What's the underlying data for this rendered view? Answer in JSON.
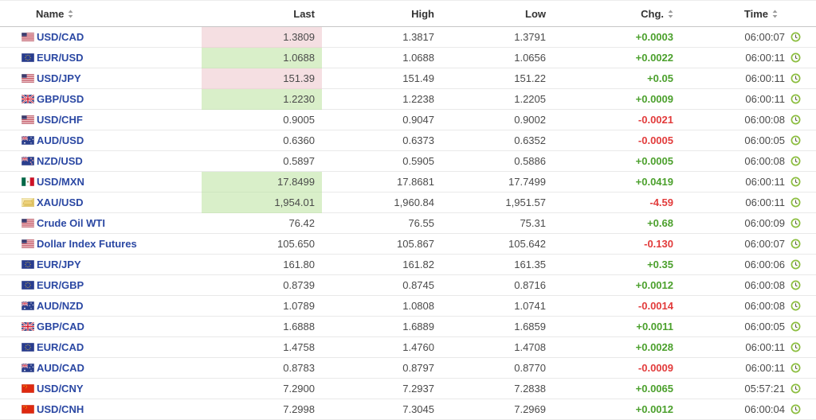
{
  "table": {
    "columns": [
      {
        "key": "name",
        "label": "Name",
        "sortable": true,
        "align": "left"
      },
      {
        "key": "last",
        "label": "Last",
        "sortable": false,
        "align": "right"
      },
      {
        "key": "high",
        "label": "High",
        "sortable": false,
        "align": "right"
      },
      {
        "key": "low",
        "label": "Low",
        "sortable": false,
        "align": "right"
      },
      {
        "key": "chg",
        "label": "Chg.",
        "sortable": true,
        "align": "right"
      },
      {
        "key": "time",
        "label": "Time",
        "sortable": true,
        "align": "right"
      }
    ],
    "rows": [
      {
        "flag": "us-flag-icon",
        "name": "USD/CAD",
        "last": "1.3809",
        "last_highlight": "down",
        "high": "1.3817",
        "low": "1.3791",
        "chg": "+0.0003",
        "chg_dir": "up",
        "time": "06:00:07"
      },
      {
        "flag": "eu-flag-icon",
        "name": "EUR/USD",
        "last": "1.0688",
        "last_highlight": "up",
        "high": "1.0688",
        "low": "1.0656",
        "chg": "+0.0022",
        "chg_dir": "up",
        "time": "06:00:11"
      },
      {
        "flag": "us-flag-icon",
        "name": "USD/JPY",
        "last": "151.39",
        "last_highlight": "down",
        "high": "151.49",
        "low": "151.22",
        "chg": "+0.05",
        "chg_dir": "up",
        "time": "06:00:11"
      },
      {
        "flag": "gb-flag-icon",
        "name": "GBP/USD",
        "last": "1.2230",
        "last_highlight": "up",
        "high": "1.2238",
        "low": "1.2205",
        "chg": "+0.0009",
        "chg_dir": "up",
        "time": "06:00:11"
      },
      {
        "flag": "us-flag-icon",
        "name": "USD/CHF",
        "last": "0.9005",
        "last_highlight": "none",
        "high": "0.9047",
        "low": "0.9002",
        "chg": "-0.0021",
        "chg_dir": "down",
        "time": "06:00:08"
      },
      {
        "flag": "au-flag-icon",
        "name": "AUD/USD",
        "last": "0.6360",
        "last_highlight": "none",
        "high": "0.6373",
        "low": "0.6352",
        "chg": "-0.0005",
        "chg_dir": "down",
        "time": "06:00:05"
      },
      {
        "flag": "nz-flag-icon",
        "name": "NZD/USD",
        "last": "0.5897",
        "last_highlight": "none",
        "high": "0.5905",
        "low": "0.5886",
        "chg": "+0.0005",
        "chg_dir": "up",
        "time": "06:00:08"
      },
      {
        "flag": "mx-flag-icon",
        "name": "USD/MXN",
        "last": "17.8499",
        "last_highlight": "up",
        "high": "17.8681",
        "low": "17.7499",
        "chg": "+0.0419",
        "chg_dir": "up",
        "time": "06:00:11"
      },
      {
        "flag": "gold-icon",
        "name": "XAU/USD",
        "last": "1,954.01",
        "last_highlight": "up",
        "high": "1,960.84",
        "low": "1,951.57",
        "chg": "-4.59",
        "chg_dir": "down",
        "time": "06:00:11"
      },
      {
        "flag": "us-flag-icon",
        "name": "Crude Oil WTI",
        "last": "76.42",
        "last_highlight": "none",
        "high": "76.55",
        "low": "75.31",
        "chg": "+0.68",
        "chg_dir": "up",
        "time": "06:00:09"
      },
      {
        "flag": "us-flag-icon",
        "name": "Dollar Index Futures",
        "last": "105.650",
        "last_highlight": "none",
        "high": "105.867",
        "low": "105.642",
        "chg": "-0.130",
        "chg_dir": "down",
        "time": "06:00:07"
      },
      {
        "flag": "eu-flag-icon",
        "name": "EUR/JPY",
        "last": "161.80",
        "last_highlight": "none",
        "high": "161.82",
        "low": "161.35",
        "chg": "+0.35",
        "chg_dir": "up",
        "time": "06:00:06"
      },
      {
        "flag": "eu-flag-icon",
        "name": "EUR/GBP",
        "last": "0.8739",
        "last_highlight": "none",
        "high": "0.8745",
        "low": "0.8716",
        "chg": "+0.0012",
        "chg_dir": "up",
        "time": "06:00:08"
      },
      {
        "flag": "au-flag-icon",
        "name": "AUD/NZD",
        "last": "1.0789",
        "last_highlight": "none",
        "high": "1.0808",
        "low": "1.0741",
        "chg": "-0.0014",
        "chg_dir": "down",
        "time": "06:00:08"
      },
      {
        "flag": "gb-flag-icon",
        "name": "GBP/CAD",
        "last": "1.6888",
        "last_highlight": "none",
        "high": "1.6889",
        "low": "1.6859",
        "chg": "+0.0011",
        "chg_dir": "up",
        "time": "06:00:05"
      },
      {
        "flag": "eu-flag-icon",
        "name": "EUR/CAD",
        "last": "1.4758",
        "last_highlight": "none",
        "high": "1.4760",
        "low": "1.4708",
        "chg": "+0.0028",
        "chg_dir": "up",
        "time": "06:00:11"
      },
      {
        "flag": "au-flag-icon",
        "name": "AUD/CAD",
        "last": "0.8783",
        "last_highlight": "none",
        "high": "0.8797",
        "low": "0.8770",
        "chg": "-0.0009",
        "chg_dir": "down",
        "time": "06:00:11"
      },
      {
        "flag": "cn-flag-icon",
        "name": "USD/CNY",
        "last": "7.2900",
        "last_highlight": "none",
        "high": "7.2937",
        "low": "7.2838",
        "chg": "+0.0065",
        "chg_dir": "up",
        "time": "05:57:21"
      },
      {
        "flag": "cn-flag-icon",
        "name": "USD/CNH",
        "last": "7.2998",
        "last_highlight": "none",
        "high": "7.3045",
        "low": "7.2969",
        "chg": "+0.0012",
        "chg_dir": "up",
        "time": "06:00:04"
      }
    ]
  },
  "icons": {
    "clock": "clock-icon",
    "sort": "sort-icon"
  },
  "colors": {
    "positive": "#4ba02c",
    "negative": "#e23b3b",
    "highlight_up": "#d9efc9",
    "highlight_down": "#f5dfe2",
    "name_link": "#2b48a3",
    "clock_ring": "#8cbe3f"
  }
}
